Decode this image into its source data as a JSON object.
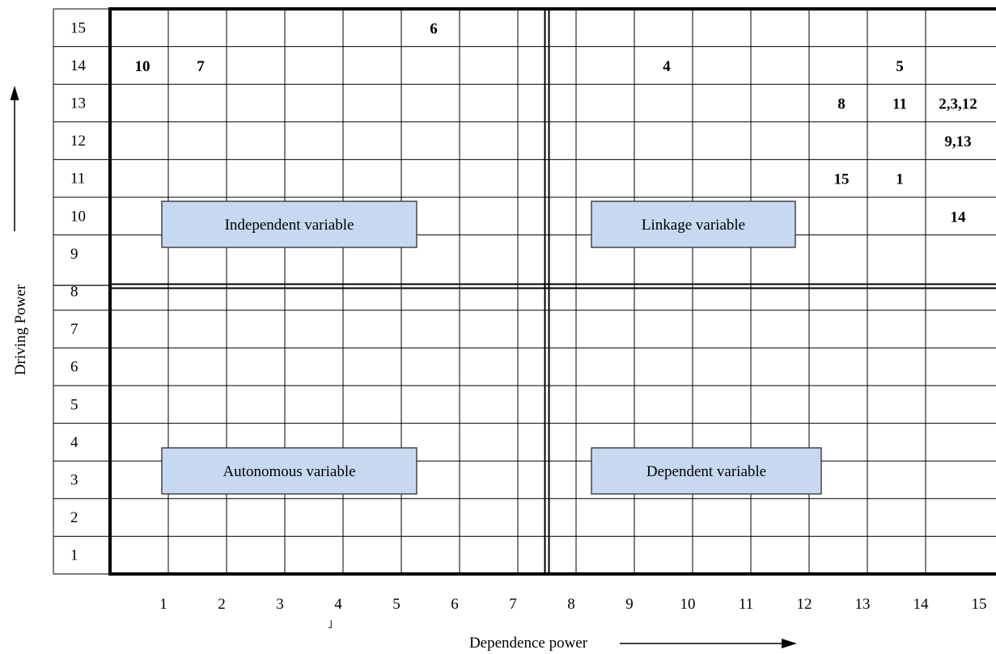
{
  "chart_data": {
    "type": "scatter",
    "xlabel": "Dependence power",
    "ylabel": "Driving Power",
    "x_ticks": [
      "1",
      "2",
      "3",
      "4",
      "5",
      "6",
      "7",
      "8",
      "9",
      "10",
      "11",
      "12",
      "13",
      "14",
      "15"
    ],
    "y_ticks": [
      "15",
      "14",
      "13",
      "12",
      "11",
      "10",
      "9",
      "8",
      "7",
      "6",
      "5",
      "4",
      "3",
      "2",
      "1"
    ],
    "xlim": [
      0,
      15
    ],
    "ylim": [
      0,
      15
    ],
    "quadrant_labels": [
      {
        "name": "independent",
        "text": "Independent variable"
      },
      {
        "name": "linkage",
        "text": "Linkage variable"
      },
      {
        "name": "autonomous",
        "text": "Autonomous variable"
      },
      {
        "name": "dependent",
        "text": "Dependent variable"
      }
    ],
    "points": [
      {
        "label": "10",
        "x": 0.5,
        "y": 13
      },
      {
        "label": "7",
        "x": 1.5,
        "y": 13
      },
      {
        "label": "6",
        "x": 5.5,
        "y": 14
      },
      {
        "label": "4",
        "x": 9.5,
        "y": 13
      },
      {
        "label": "5",
        "x": 13.5,
        "y": 13
      },
      {
        "label": "8",
        "x": 12.5,
        "y": 12
      },
      {
        "label": "11",
        "x": 13.5,
        "y": 12
      },
      {
        "label": "2,3,12",
        "x": 14.5,
        "y": 12
      },
      {
        "label": "9,13",
        "x": 14.5,
        "y": 11
      },
      {
        "label": "15",
        "x": 12.5,
        "y": 10
      },
      {
        "label": "1",
        "x": 13.5,
        "y": 10
      },
      {
        "label": "14",
        "x": 14.5,
        "y": 9
      }
    ],
    "stray_mark": "˩"
  }
}
